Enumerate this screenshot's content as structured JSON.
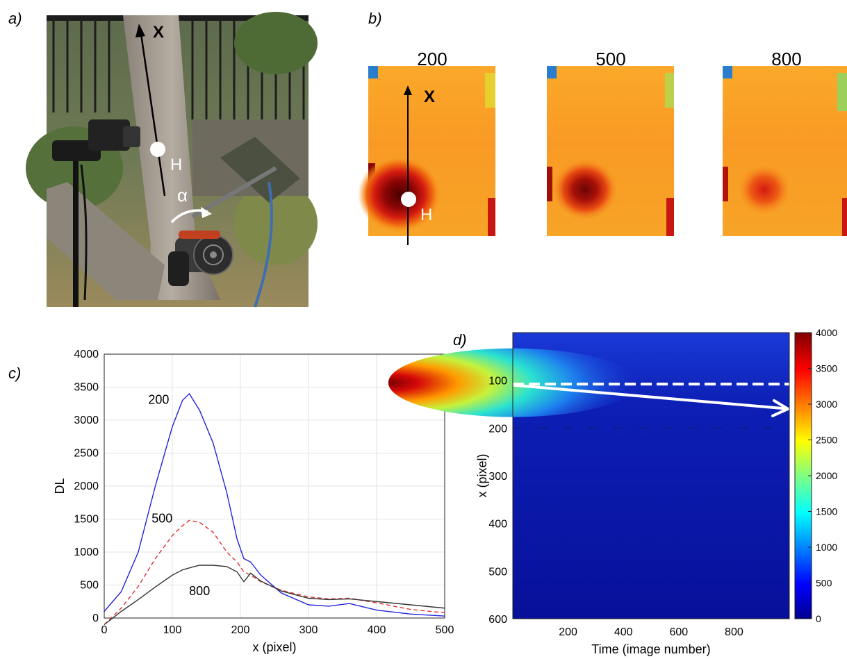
{
  "panels": {
    "a": "a)",
    "b": "b)",
    "c": "c)",
    "d": "d)"
  },
  "photo": {
    "axis_label": "X",
    "point_label": "H",
    "angle_label": "α"
  },
  "thermal": {
    "frames": [
      "200",
      "500",
      "800"
    ],
    "axis_label": "X",
    "point_label": "H"
  },
  "chart_data": [
    {
      "type": "line",
      "xlabel": "x (pixel)",
      "ylabel": "DL",
      "xlim": [
        0,
        500
      ],
      "ylim": [
        0,
        4000
      ],
      "xticks": [
        0,
        100,
        200,
        300,
        400,
        500
      ],
      "yticks": [
        0,
        500,
        1000,
        1500,
        2000,
        2500,
        3000,
        3500,
        4000
      ],
      "grid": true,
      "x": [
        0,
        25,
        50,
        75,
        100,
        115,
        125,
        140,
        160,
        180,
        195,
        205,
        215,
        230,
        260,
        300,
        330,
        360,
        400,
        450,
        500
      ],
      "series": [
        {
          "name": "200",
          "color": "#2222dd",
          "style": "solid",
          "values": [
            100,
            400,
            1000,
            2000,
            2900,
            3300,
            3400,
            3150,
            2650,
            1900,
            1200,
            900,
            850,
            650,
            380,
            200,
            180,
            220,
            120,
            60,
            30
          ]
        },
        {
          "name": "500",
          "color": "#e03030",
          "style": "dashed",
          "values": [
            -100,
            150,
            480,
            900,
            1250,
            1400,
            1480,
            1450,
            1300,
            1000,
            850,
            700,
            650,
            550,
            420,
            320,
            290,
            300,
            230,
            130,
            80
          ]
        },
        {
          "name": "800",
          "color": "#333333",
          "style": "solid",
          "values": [
            -100,
            100,
            280,
            470,
            650,
            730,
            760,
            800,
            800,
            780,
            700,
            550,
            680,
            560,
            410,
            300,
            280,
            290,
            250,
            200,
            150
          ]
        }
      ],
      "annotations": [
        "200",
        "500",
        "800"
      ]
    },
    {
      "type": "heatmap",
      "xlabel": "Time (image number)",
      "ylabel": "x (pixel)",
      "xticks": [
        200,
        400,
        600,
        800
      ],
      "yticks": [
        100,
        200,
        300,
        400,
        500,
        600
      ],
      "xlim": [
        0,
        1000
      ],
      "ylim": [
        600,
        0
      ],
      "colorbar": {
        "min": 0,
        "max": 4000,
        "ticks": [
          0,
          500,
          1000,
          1500,
          2000,
          2500,
          3000,
          3500,
          4000
        ]
      },
      "colormap": "jet",
      "dashed_line_y": 108,
      "arrow": {
        "from": [
          0,
          110
        ],
        "to": [
          1000,
          160
        ]
      }
    }
  ]
}
